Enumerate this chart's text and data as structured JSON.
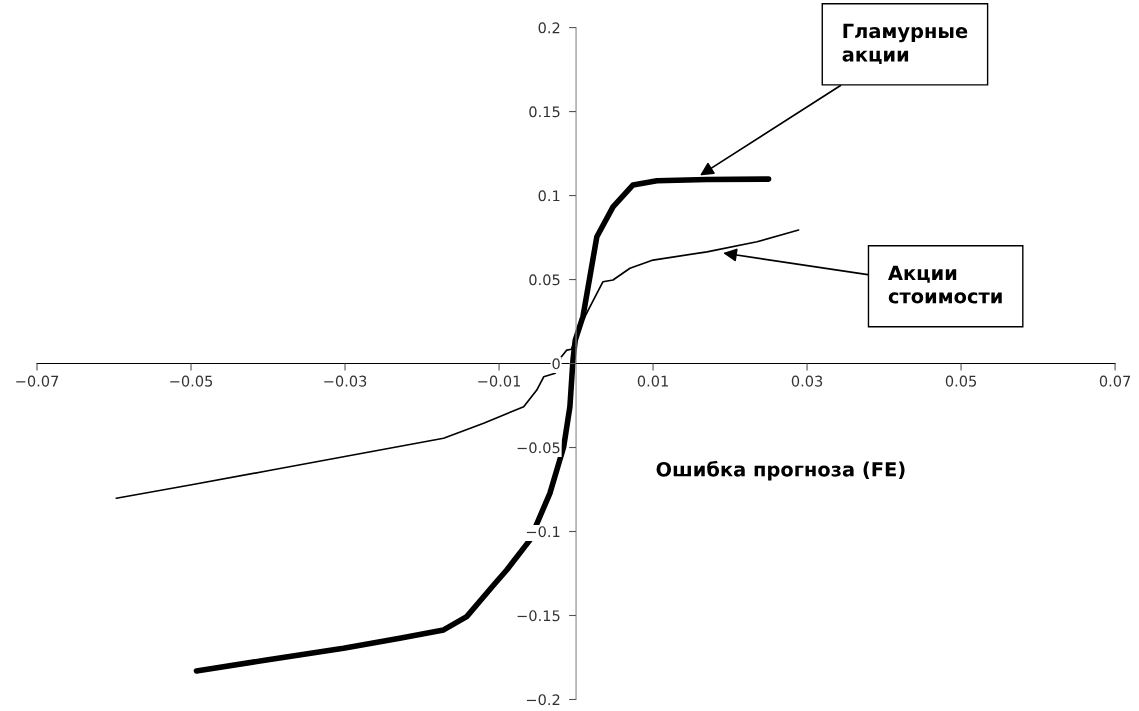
{
  "chart_data": {
    "type": "line",
    "xlabel": "Ошибка прогноза (FE)",
    "xlim": [
      -0.07,
      0.07
    ],
    "ylim": [
      -0.2,
      0.2
    ],
    "xticks": [
      {
        "value": -0.07,
        "label": "−0.07"
      },
      {
        "value": -0.05,
        "label": "−0.05"
      },
      {
        "value": -0.03,
        "label": "−0.03"
      },
      {
        "value": -0.01,
        "label": "−0.01"
      },
      0.01,
      0.03,
      0.05,
      0.07
    ],
    "yticks": [
      {
        "value": -0.2,
        "label": "−0.2"
      },
      {
        "value": -0.15,
        "label": "−0.15"
      },
      {
        "value": -0.1,
        "label": "−0.1"
      },
      {
        "value": -0.05,
        "label": "−0.05"
      },
      0,
      0.05,
      0.1,
      0.15,
      0.2
    ],
    "grid": false,
    "legend": false,
    "marker": "none",
    "line_style": "solid",
    "series": [
      {
        "color": "#000000",
        "x": [
          -0.0493,
          -0.0402,
          -0.0302,
          -0.0229,
          -0.0172,
          -0.0142,
          -0.0107,
          -0.009,
          -0.006,
          -0.0034,
          -0.0016,
          -0.0008,
          -0.0004,
          -0.0001,
          0.0009,
          0.0027,
          0.0048,
          0.0074,
          0.0105,
          0.017,
          0.025
        ],
        "values": [
          -0.183,
          -0.1765,
          -0.1695,
          -0.1636,
          -0.1586,
          -0.1507,
          -0.1318,
          -0.1229,
          -0.1051,
          -0.0773,
          -0.0495,
          -0.0257,
          0.002,
          0.014,
          0.028,
          0.0755,
          0.0933,
          0.1063,
          0.1088,
          0.1096,
          0.1098
        ]
      },
      {
        "color": "#000000",
        "x": [
          -0.0597,
          -0.0501,
          -0.0402,
          -0.0302,
          -0.0172,
          -0.012,
          -0.0068,
          -0.0051,
          -0.0042,
          -0.0027,
          -0.0019,
          -0.0012,
          -0.0006,
          0.0005,
          0.0018,
          0.0035,
          0.0048,
          0.007,
          0.01,
          0.017,
          0.0235,
          0.0289
        ],
        "values": [
          -0.0802,
          -0.0723,
          -0.064,
          -0.0555,
          -0.0445,
          -0.0356,
          -0.0257,
          -0.0158,
          -0.0079,
          -0.0058,
          0.004,
          0.008,
          0.0085,
          0.0219,
          0.0338,
          0.0487,
          0.0497,
          0.0567,
          0.0616,
          0.0665,
          0.0725,
          0.0795
        ]
      }
    ],
    "annotations": [
      {
        "text": "Гламурные акции",
        "x": 0.0161,
        "y": 0.112
      },
      {
        "text": "Акции стоимости",
        "x": 0.0191,
        "y": 0.0658
      }
    ]
  }
}
